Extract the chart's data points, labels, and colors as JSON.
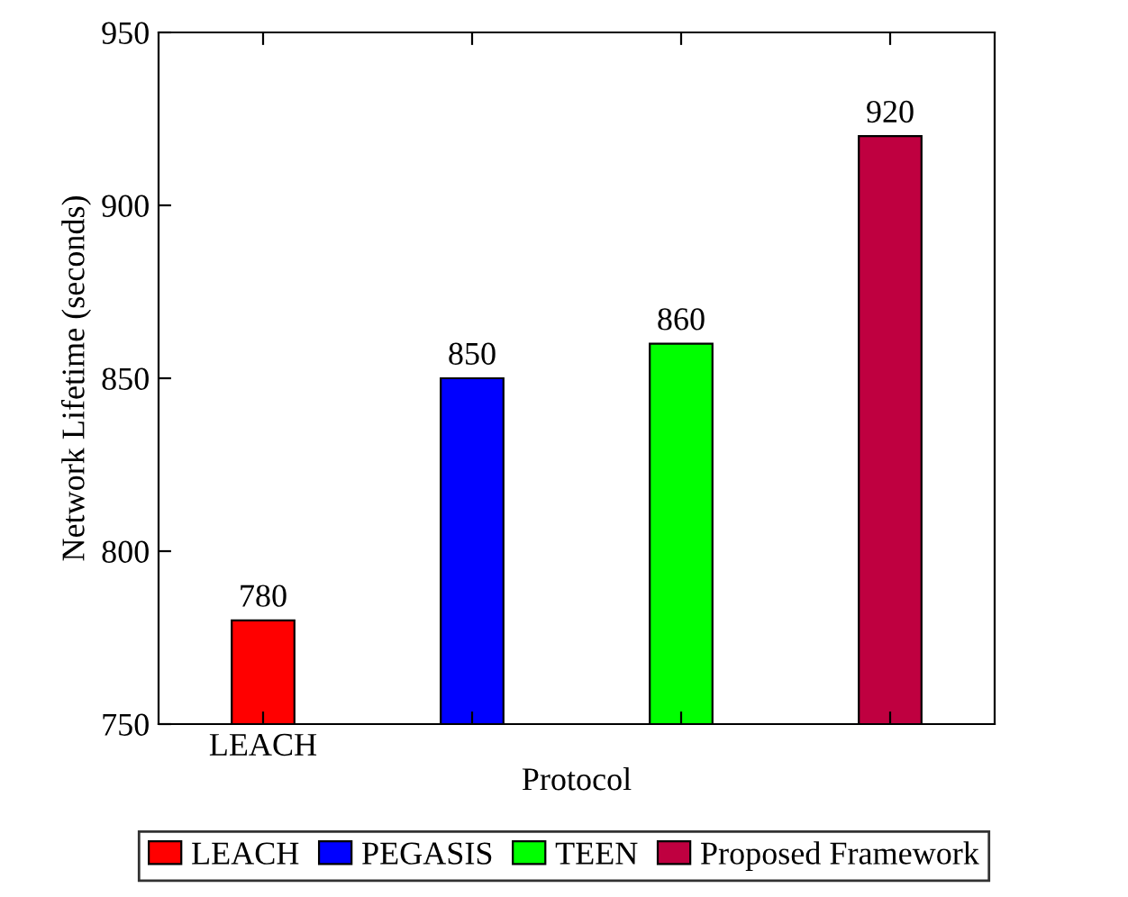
{
  "chart_data": {
    "type": "bar",
    "xlabel": "Protocol",
    "ylabel": "Network Lifetime (seconds)",
    "categories": [
      "LEACH",
      null,
      null,
      null
    ],
    "series": [
      {
        "name": "LEACH",
        "color": "#ff0000",
        "values": [
          780,
          null,
          null,
          null
        ]
      },
      {
        "name": "PEGASIS",
        "color": "#0000ff",
        "values": [
          null,
          850,
          null,
          null
        ]
      },
      {
        "name": "TEEN",
        "color": "#00ff00",
        "values": [
          null,
          null,
          860,
          null
        ]
      },
      {
        "name": "Proposed Framework",
        "color": "#bf0040",
        "values": [
          null,
          null,
          null,
          920
        ]
      }
    ],
    "ylim": [
      750,
      950
    ],
    "yticks": [
      750,
      800,
      850,
      900,
      950
    ],
    "data_labels": true,
    "legend": "bottom",
    "grid": false
  }
}
